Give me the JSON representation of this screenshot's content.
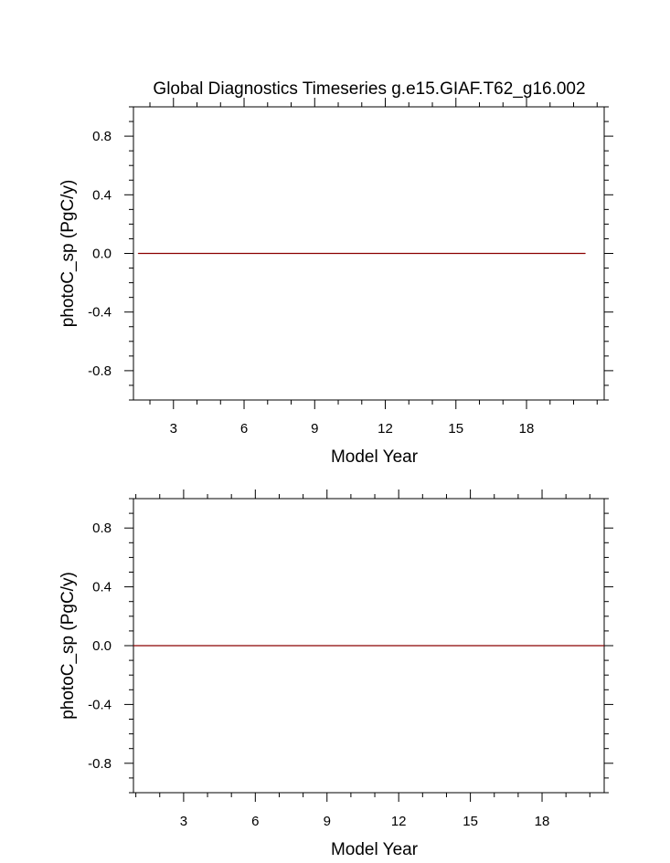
{
  "chart_data": [
    {
      "type": "line",
      "title": "Global Diagnostics Timeseries g.e15.GIAF.T62_g16.002",
      "xlabel": "Model Year",
      "ylabel": "photoC_sp (PgC/y)",
      "xlim": [
        1.3,
        21.3
      ],
      "ylim": [
        -1.0,
        1.0
      ],
      "xticks": [
        3,
        6,
        9,
        12,
        15,
        18
      ],
      "xtick_labels": [
        "3",
        "6",
        "9",
        "12",
        "15",
        "18"
      ],
      "yticks": [
        0.8,
        0.4,
        0.0,
        -0.4,
        -0.8
      ],
      "ytick_labels": [
        "0.8",
        "0.4",
        "0.0",
        "-0.4",
        "-0.8"
      ],
      "grid": false,
      "series": [
        {
          "color": "#8b0000",
          "x": [
            1.5,
            3,
            6,
            9,
            12,
            15,
            18,
            20.5
          ],
          "y": [
            0,
            0,
            0,
            0,
            0,
            0,
            0,
            0
          ]
        }
      ]
    },
    {
      "type": "line",
      "title": "",
      "xlabel": "Model Year",
      "ylabel": "photoC_sp (PgC/y)",
      "xlim": [
        0.9,
        20.6
      ],
      "ylim": [
        -1.0,
        1.0
      ],
      "xticks": [
        3,
        6,
        9,
        12,
        15,
        18
      ],
      "xtick_labels": [
        "3",
        "6",
        "9",
        "12",
        "15",
        "18"
      ],
      "yticks": [
        0.8,
        0.4,
        0.0,
        -0.4,
        -0.8
      ],
      "ytick_labels": [
        "0.8",
        "0.4",
        "0.0",
        "-0.4",
        "-0.8"
      ],
      "grid": false,
      "series": [
        {
          "color": "#8b0000",
          "x": [
            0.9,
            3,
            6,
            9,
            12,
            15,
            18,
            20.6
          ],
          "y": [
            0,
            0,
            0,
            0,
            0,
            0,
            0,
            0
          ]
        }
      ]
    }
  ]
}
